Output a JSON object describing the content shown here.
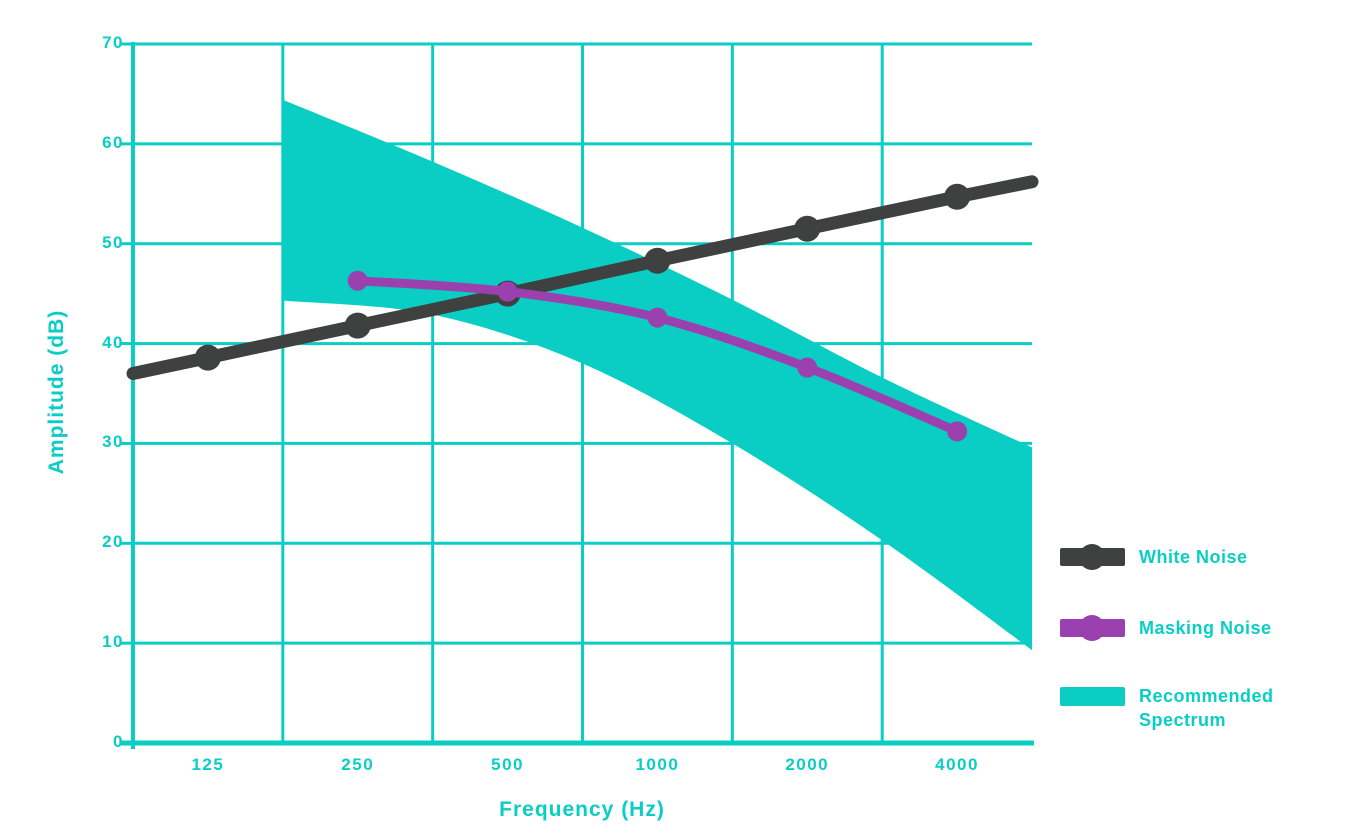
{
  "colors": {
    "teal": "#0ACDC4",
    "dark_gray": "#3F4040",
    "purple": "#9B41AF",
    "background": "#FFFFFF"
  },
  "legend": {
    "items": [
      {
        "label": "White Noise",
        "marker": "line-with-dot",
        "color": "#3F4040"
      },
      {
        "label": "Masking Noise",
        "marker": "line-with-dot",
        "color": "#9B41AF"
      },
      {
        "label": "Recommended Spectrum",
        "marker": "filled-band",
        "color": "#0ACDC4"
      }
    ]
  },
  "chart_data": {
    "type": "line",
    "title": "",
    "xlabel": "Frequency (Hz)",
    "ylabel": "Amplitude (dB)",
    "x_scale": "log2-octaves",
    "xlim_hz": [
      88.4,
      5657
    ],
    "ylim": [
      0,
      70
    ],
    "y_ticks": [
      0,
      10,
      20,
      30,
      40,
      50,
      60,
      70
    ],
    "x_tick_labels": [
      "125",
      "250",
      "500",
      "1000",
      "2000",
      "4000"
    ],
    "x_ticks_hz": [
      125,
      250,
      500,
      1000,
      2000,
      4000
    ],
    "grid": "both",
    "legend_position": "right",
    "series": [
      {
        "name": "White Noise",
        "kind": "line",
        "color": "#3F4040",
        "stroke_width": 13,
        "x_hz": [
          88.4,
          125,
          250,
          500,
          1000,
          2000,
          4000,
          5657
        ],
        "db": [
          37.0,
          38.6,
          41.8,
          45.0,
          48.3,
          51.5,
          54.7,
          56.2
        ],
        "dots_at_hz": [
          125,
          250,
          500,
          1000,
          2000,
          4000
        ],
        "dot_db": [
          38.6,
          41.8,
          45.0,
          48.3,
          51.5,
          54.7
        ],
        "dot_radius": 13
      },
      {
        "name": "Masking Noise",
        "kind": "smooth-line",
        "color": "#9B41AF",
        "stroke_width": 9,
        "x_hz": [
          250,
          500,
          1000,
          2000,
          4000
        ],
        "db": [
          46.3,
          45.2,
          42.6,
          37.6,
          31.2
        ],
        "dots_at_hz": [
          250,
          500,
          1000,
          2000,
          4000
        ],
        "dot_db": [
          46.3,
          45.2,
          42.6,
          37.6,
          31.2
        ],
        "dot_radius": 10
      },
      {
        "name": "Recommended Spectrum",
        "kind": "band",
        "color": "#0ACDC4",
        "x_hz": [
          177,
          354,
          707,
          1414,
          2828,
          5657
        ],
        "top_db": [
          64.4,
          58.2,
          51.6,
          44.4,
          36.6,
          29.6
        ],
        "bottom_db": [
          44.3,
          42.9,
          38.0,
          30.0,
          20.3,
          9.3
        ]
      }
    ]
  }
}
